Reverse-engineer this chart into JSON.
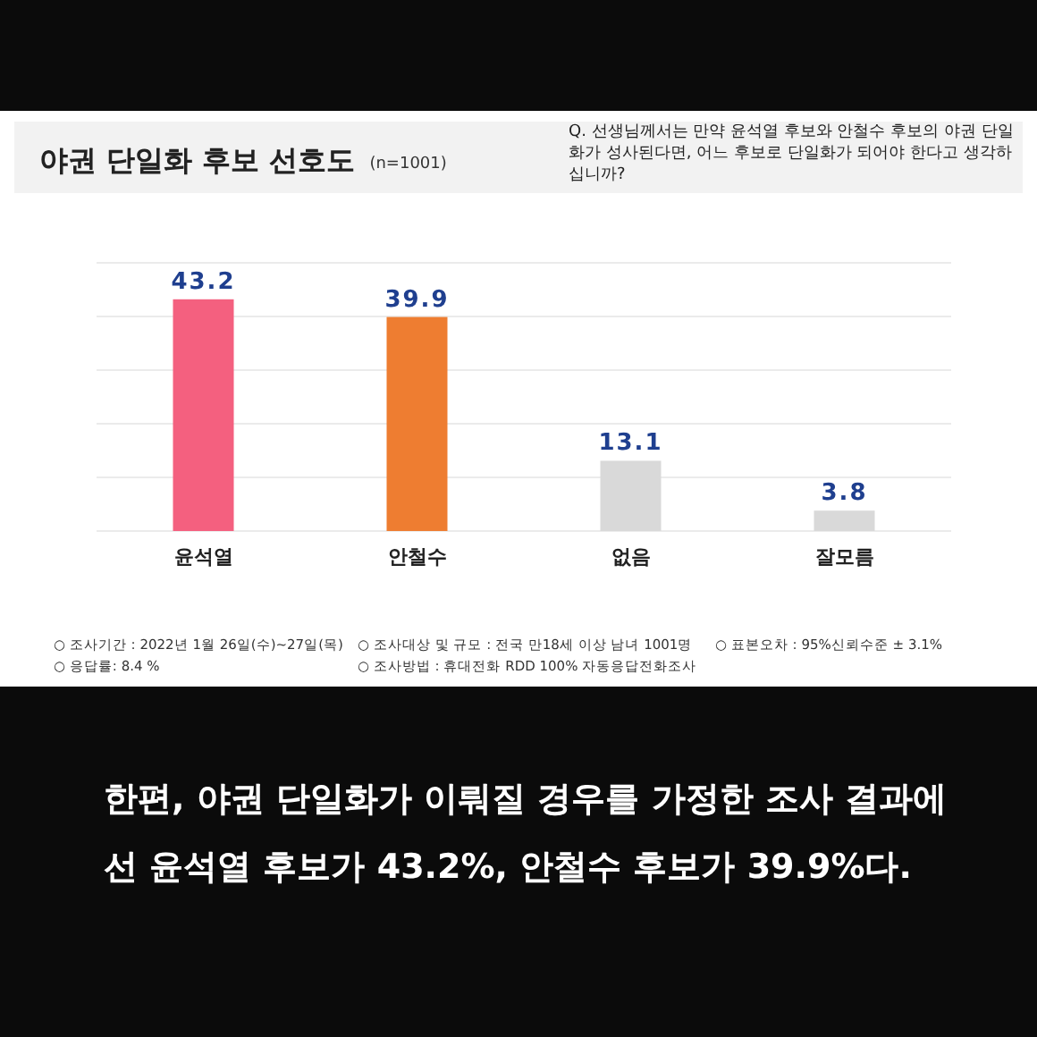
{
  "chart_data": {
    "type": "bar",
    "title": "야권 단일화 후보 선호도",
    "subtitle": "(n=1001)",
    "categories": [
      "윤석열",
      "안철수",
      "없음",
      "잘모름"
    ],
    "values": [
      43.2,
      39.9,
      13.1,
      3.8
    ],
    "colors": [
      "#f4607f",
      "#ee7d31",
      "#d9d9d9",
      "#d9d9d9"
    ],
    "ylim": [
      0,
      50
    ],
    "yticks": [
      {
        "value": 0,
        "label": null
      },
      {
        "value": 10,
        "label": null
      },
      {
        "value": 20,
        "label": null
      },
      {
        "value": 30,
        "label": null
      },
      {
        "value": 40,
        "label": null
      },
      {
        "value": 50,
        "label": null
      }
    ],
    "grid": "y",
    "tick_labels": "x",
    "data_labels": true,
    "annotations": [
      "Q. 선생님께서는 만약 윤석열 후보와 안철수 후보의 야권 단일화가 성사된다면, 어느 후보로 단일화가 되어야 한다고 생각하십니까?",
      "○ 조사기간 : 2022년 1월 26일(수)~27일(목)",
      "○ 조사대상 및 규모 : 전국 만18세 이상 남녀 1001명",
      "○ 표본오차 : 95%신뢰수준 ± 3.1%",
      "○ 응답률: 8.4 %",
      "○ 조사방법 : 휴대전화 RDD 100% 자동응답전화조사",
      "한편, 야권 단일화가 이뤄질 경우를 가정한 조사 결과에선 윤석열 후보가 43.2%, 안철수 후보가 39.9%다."
    ]
  }
}
